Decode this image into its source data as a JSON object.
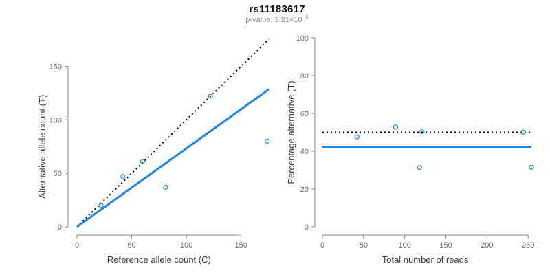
{
  "header": {
    "title": "rs11183617",
    "subtitle_prefix": "p-value: 3.21×10",
    "subtitle_exponent": "−6"
  },
  "colors": {
    "title": "#111111",
    "subtitle": "#8e8e8e",
    "axis_line": "#8a8a8a",
    "tick_label": "#6f6f6f",
    "axis_title": "#3c3c3c",
    "identity_line": "#000000",
    "fit_line": "#1e86e5",
    "point_stroke": "#2e90e8"
  },
  "chart_data": [
    {
      "type": "scatter",
      "name": "allele-counts-panel",
      "xlabel": "Reference allele count (C)",
      "ylabel": "Alternative allele count (T)",
      "xlim": [
        0,
        176
      ],
      "ylim": [
        0,
        176
      ],
      "xticks": [
        0,
        50,
        100,
        150
      ],
      "yticks": [
        0,
        50,
        100,
        150
      ],
      "points": [
        [
          22,
          20
        ],
        [
          42,
          47
        ],
        [
          60,
          61
        ],
        [
          81,
          37
        ],
        [
          122,
          122
        ],
        [
          174,
          80
        ]
      ],
      "lines": [
        {
          "name": "identity-50pct-line",
          "style": "dotted",
          "color": "#000000",
          "from": [
            0,
            0
          ],
          "to": [
            176,
            176
          ]
        },
        {
          "name": "fit-line-slope-0.733",
          "style": "solid",
          "color": "#1e86e5",
          "from": [
            0,
            0
          ],
          "to": [
            176,
            128.9
          ]
        }
      ],
      "grid": false,
      "legend": "none"
    },
    {
      "type": "scatter",
      "name": "percentage-alternative-panel",
      "xlabel": "Total number of reads",
      "ylabel": "Percentage alternative (T)",
      "xlim": [
        0,
        254
      ],
      "ylim": [
        0,
        100
      ],
      "xticks": [
        0,
        50,
        100,
        150,
        200,
        250
      ],
      "yticks": [
        0,
        20,
        40,
        60,
        80,
        100
      ],
      "points": [
        [
          42,
          47.6
        ],
        [
          89,
          52.8
        ],
        [
          121,
          50.4
        ],
        [
          118,
          31.4
        ],
        [
          244,
          50.0
        ],
        [
          254,
          31.5
        ]
      ],
      "lines": [
        {
          "name": "expected-50pct-line",
          "style": "dotted",
          "color": "#000000",
          "from": [
            0,
            50
          ],
          "to": [
            254,
            50
          ]
        },
        {
          "name": "observed-mean-42.3pct-line",
          "style": "solid",
          "color": "#1e86e5",
          "from": [
            0,
            42.3
          ],
          "to": [
            254,
            42.3
          ]
        }
      ],
      "grid": false,
      "legend": "none"
    }
  ]
}
